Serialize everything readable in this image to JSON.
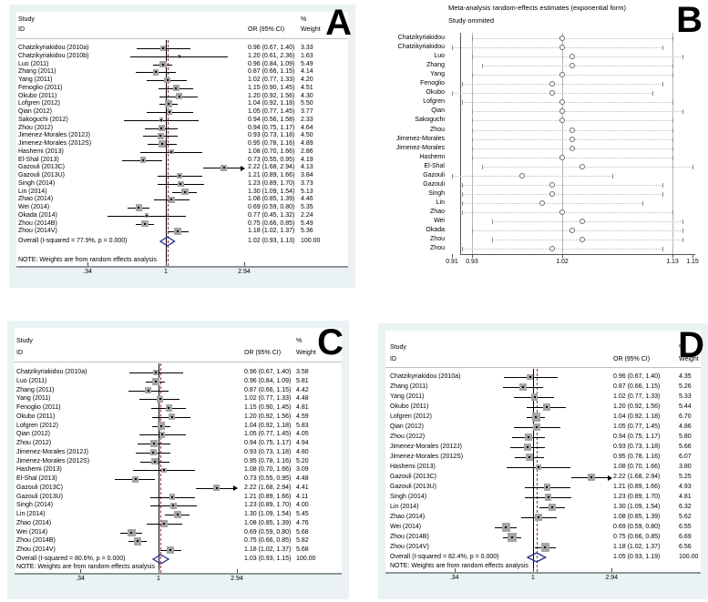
{
  "chart_data": [
    {
      "panel": "A",
      "type": "forest",
      "letter": "A",
      "header": {
        "study": "Study",
        "id": "ID",
        "or": "OR (95% CI)",
        "pct": "%",
        "weight": "Weight"
      },
      "note": "NOTE: Weights are from random effects analysis",
      "axis_ticks": [
        {
          "label": ".34",
          "v": 0.34
        },
        {
          "label": "1",
          "v": 1
        },
        {
          "label": "2.94",
          "v": 2.94
        }
      ],
      "xscale": "log",
      "studies": [
        {
          "label": "Chatzikyriakidou (2010a)",
          "or": 0.96,
          "lo": 0.67,
          "hi": 1.4,
          "or_text": "0.96 (0.67, 1.40)",
          "weight": "3.33"
        },
        {
          "label": "Chatzikyriakidou (2010b)",
          "or": 1.2,
          "lo": 0.61,
          "hi": 2.36,
          "or_text": "1.20 (0.61, 2.36)",
          "weight": "1.63"
        },
        {
          "label": "Luo (2011)",
          "or": 0.96,
          "lo": 0.84,
          "hi": 1.09,
          "or_text": "0.96 (0.84, 1.09)",
          "weight": "5.49"
        },
        {
          "label": "Zhang (2011)",
          "or": 0.87,
          "lo": 0.66,
          "hi": 1.15,
          "or_text": "0.87 (0.66, 1.15)",
          "weight": "4.14"
        },
        {
          "label": "Yang (2011)",
          "or": 1.02,
          "lo": 0.77,
          "hi": 1.33,
          "or_text": "1.02 (0.77, 1.33)",
          "weight": "4.20"
        },
        {
          "label": "Fenoglio (2011)",
          "or": 1.15,
          "lo": 0.9,
          "hi": 1.45,
          "or_text": "1.15 (0.90, 1.45)",
          "weight": "4.51"
        },
        {
          "label": "Okubo (2011)",
          "or": 1.2,
          "lo": 0.92,
          "hi": 1.56,
          "or_text": "1.20 (0.92, 1.56)",
          "weight": "4.30"
        },
        {
          "label": "Lofgren (2012)",
          "or": 1.04,
          "lo": 0.92,
          "hi": 1.18,
          "or_text": "1.04 (0.92, 1.18)",
          "weight": "5.50"
        },
        {
          "label": "Qian (2012)",
          "or": 1.05,
          "lo": 0.77,
          "hi": 1.45,
          "or_text": "1.05 (0.77, 1.45)",
          "weight": "3.77"
        },
        {
          "label": "Sakoguchi (2012)",
          "or": 0.94,
          "lo": 0.56,
          "hi": 1.58,
          "or_text": "0.94 (0.56, 1.58)",
          "weight": "2.33"
        },
        {
          "label": "Zhou (2012)",
          "or": 0.94,
          "lo": 0.75,
          "hi": 1.17,
          "or_text": "0.94 (0.75, 1.17)",
          "weight": "4.64"
        },
        {
          "label": "Jimenez-Morales (2012J)",
          "or": 0.93,
          "lo": 0.73,
          "hi": 1.18,
          "or_text": "0.93 (0.73, 1.18)",
          "weight": "4.50"
        },
        {
          "label": "Jimenez-Morales (2012S)",
          "or": 0.95,
          "lo": 0.78,
          "hi": 1.16,
          "or_text": "0.95 (0.78, 1.16)",
          "weight": "4.89"
        },
        {
          "label": "Hashemi (2013)",
          "or": 1.08,
          "lo": 0.7,
          "hi": 1.66,
          "or_text": "1.08 (0.70, 1.66)",
          "weight": "2.86"
        },
        {
          "label": "El-Shal (2013)",
          "or": 0.73,
          "lo": 0.55,
          "hi": 0.95,
          "or_text": "0.73 (0.55, 0.95)",
          "weight": "4.19"
        },
        {
          "label": "Gazouli (2013C)",
          "or": 2.22,
          "lo": 1.68,
          "hi": 2.94,
          "or_text": "2.22 (1.68, 2.94)",
          "weight": "4.13"
        },
        {
          "label": "Gazouli (2013U)",
          "or": 1.21,
          "lo": 0.89,
          "hi": 1.66,
          "or_text": "1.21 (0.89, 1.66)",
          "weight": "3.84"
        },
        {
          "label": "Singh (2014)",
          "or": 1.23,
          "lo": 0.89,
          "hi": 1.7,
          "or_text": "1.23 (0.89, 1.70)",
          "weight": "3.73"
        },
        {
          "label": "Lin (2014)",
          "or": 1.3,
          "lo": 1.09,
          "hi": 1.54,
          "or_text": "1.30 (1.09, 1.54)",
          "weight": "5.13"
        },
        {
          "label": "Zhao (2014)",
          "or": 1.08,
          "lo": 0.85,
          "hi": 1.39,
          "or_text": "1.08 (0.85, 1.39)",
          "weight": "4.46"
        },
        {
          "label": "Wei (2014)",
          "or": 0.69,
          "lo": 0.59,
          "hi": 0.8,
          "or_text": "0.69 (0.59, 0.80)",
          "weight": "5.35"
        },
        {
          "label": "Okada (2014)",
          "or": 0.77,
          "lo": 0.45,
          "hi": 1.32,
          "or_text": "0.77 (0.45, 1.32)",
          "weight": "2.24"
        },
        {
          "label": "Zhou (2014B)",
          "or": 0.75,
          "lo": 0.66,
          "hi": 0.85,
          "or_text": "0.75 (0.66, 0.85)",
          "weight": "5.49"
        },
        {
          "label": "Zhou (2014V)",
          "or": 1.18,
          "lo": 1.02,
          "hi": 1.37,
          "or_text": "1.18 (1.02, 1.37)",
          "weight": "5.36"
        }
      ],
      "overall": {
        "label": "Overall  (I-squared = 77.9%, p = 0.000)",
        "or": 1.02,
        "lo": 0.93,
        "hi": 1.13,
        "or_text": "1.02 (0.93, 1.13)",
        "weight": "100.00"
      }
    },
    {
      "panel": "B",
      "type": "sensitivity",
      "letter": "B",
      "title1": "Meta-analysis random-effects estimates (exponential form)",
      "title2": "Study ommited",
      "axis_ticks": [
        {
          "label": "0.91",
          "v": 0.91
        },
        {
          "label": "0.93",
          "v": 0.93
        },
        {
          "label": "1.02",
          "v": 1.02
        },
        {
          "label": "1.13",
          "v": 1.13
        },
        {
          "label": "1.15",
          "v": 1.15
        }
      ],
      "vlines": [
        0.93,
        1.02,
        1.13
      ],
      "studies": [
        {
          "label": "Chatzikyriakidou",
          "est": 1.02,
          "lo": 0.93,
          "hi": 1.13
        },
        {
          "label": "Chatzikyriakidou",
          "est": 1.02,
          "lo": 0.91,
          "hi": 1.12
        },
        {
          "label": "Luo",
          "est": 1.03,
          "lo": 0.93,
          "hi": 1.14
        },
        {
          "label": "Zhang",
          "est": 1.03,
          "lo": 0.94,
          "hi": 1.13
        },
        {
          "label": "Yang",
          "est": 1.02,
          "lo": 0.93,
          "hi": 1.13
        },
        {
          "label": "Fenoglio",
          "est": 1.01,
          "lo": 0.92,
          "hi": 1.12
        },
        {
          "label": "Okubo",
          "est": 1.01,
          "lo": 0.91,
          "hi": 1.11
        },
        {
          "label": "Lofgren",
          "est": 1.02,
          "lo": 0.92,
          "hi": 1.13
        },
        {
          "label": "Qian",
          "est": 1.02,
          "lo": 0.93,
          "hi": 1.14
        },
        {
          "label": "Sakoguchi",
          "est": 1.02,
          "lo": 0.93,
          "hi": 1.13
        },
        {
          "label": "Zhou",
          "est": 1.03,
          "lo": 0.93,
          "hi": 1.13
        },
        {
          "label": "Jimenez-Morales",
          "est": 1.03,
          "lo": 0.93,
          "hi": 1.13
        },
        {
          "label": "Jimenez-Morales",
          "est": 1.03,
          "lo": 0.93,
          "hi": 1.13
        },
        {
          "label": "Hashemi",
          "est": 1.02,
          "lo": 0.93,
          "hi": 1.13
        },
        {
          "label": "El-Shal",
          "est": 1.04,
          "lo": 0.94,
          "hi": 1.15
        },
        {
          "label": "Gazouli",
          "est": 0.98,
          "lo": 0.91,
          "hi": 1.07
        },
        {
          "label": "Gazouli",
          "est": 1.01,
          "lo": 0.92,
          "hi": 1.12
        },
        {
          "label": "Singh",
          "est": 1.01,
          "lo": 0.92,
          "hi": 1.12
        },
        {
          "label": "Lin",
          "est": 1.0,
          "lo": 0.92,
          "hi": 1.1
        },
        {
          "label": "Zhao",
          "est": 1.02,
          "lo": 0.92,
          "hi": 1.13
        },
        {
          "label": "Wei",
          "est": 1.04,
          "lo": 0.95,
          "hi": 1.14
        },
        {
          "label": "Okada",
          "est": 1.03,
          "lo": 0.93,
          "hi": 1.14
        },
        {
          "label": "Zhou",
          "est": 1.04,
          "lo": 0.95,
          "hi": 1.14
        },
        {
          "label": "Zhou",
          "est": 1.01,
          "lo": 0.92,
          "hi": 1.12
        }
      ]
    },
    {
      "panel": "C",
      "type": "forest",
      "letter": "C",
      "header": {
        "study": "Study",
        "id": "ID",
        "or": "OR (95% CI)",
        "pct": "%",
        "weight": "Weight"
      },
      "note": "NOTE: Weights are from random effects analysis",
      "axis_ticks": [
        {
          "label": ".34",
          "v": 0.34
        },
        {
          "label": "1",
          "v": 1
        },
        {
          "label": "2.94",
          "v": 2.94
        }
      ],
      "xscale": "log",
      "studies": [
        {
          "label": "Chatzikyriakidou (2010a)",
          "or": 0.96,
          "lo": 0.67,
          "hi": 1.4,
          "or_text": "0.96 (0.67, 1.40)",
          "weight": "3.58"
        },
        {
          "label": "Luo (2011)",
          "or": 0.96,
          "lo": 0.84,
          "hi": 1.09,
          "or_text": "0.96 (0.84, 1.09)",
          "weight": "5.81"
        },
        {
          "label": "Zhang (2011)",
          "or": 0.87,
          "lo": 0.66,
          "hi": 1.15,
          "or_text": "0.87 (0.66, 1.15)",
          "weight": "4.42"
        },
        {
          "label": "Yang (2011)",
          "or": 1.02,
          "lo": 0.77,
          "hi": 1.33,
          "or_text": "1.02 (0.77, 1.33)",
          "weight": "4.48"
        },
        {
          "label": "Fenoglio (2011)",
          "or": 1.15,
          "lo": 0.9,
          "hi": 1.45,
          "or_text": "1.15 (0.90, 1.45)",
          "weight": "4.81"
        },
        {
          "label": "Okubo (2011)",
          "or": 1.2,
          "lo": 0.92,
          "hi": 1.56,
          "or_text": "1.20 (0.92, 1.56)",
          "weight": "4.59"
        },
        {
          "label": "Lofgren (2012)",
          "or": 1.04,
          "lo": 0.92,
          "hi": 1.18,
          "or_text": "1.04 (0.92, 1.18)",
          "weight": "5.83"
        },
        {
          "label": "Qian (2012)",
          "or": 1.05,
          "lo": 0.77,
          "hi": 1.45,
          "or_text": "1.05 (0.77, 1.45)",
          "weight": "4.05"
        },
        {
          "label": "Zhou (2012)",
          "or": 0.94,
          "lo": 0.75,
          "hi": 1.17,
          "or_text": "0.94 (0.75, 1.17)",
          "weight": "4.94"
        },
        {
          "label": "Jimenez-Morales (2012J)",
          "or": 0.93,
          "lo": 0.73,
          "hi": 1.18,
          "or_text": "0.93 (0.73, 1.18)",
          "weight": "4.80"
        },
        {
          "label": "Jimenez-Morales (2012S)",
          "or": 0.95,
          "lo": 0.78,
          "hi": 1.16,
          "or_text": "0.95 (0.78, 1.16)",
          "weight": "5.20"
        },
        {
          "label": "Hashemi (2013)",
          "or": 1.08,
          "lo": 0.7,
          "hi": 1.66,
          "or_text": "1.08 (0.70, 1.66)",
          "weight": "3.09"
        },
        {
          "label": "El-Shal (2013)",
          "or": 0.73,
          "lo": 0.55,
          "hi": 0.95,
          "or_text": "0.73 (0.55, 0.95)",
          "weight": "4.48"
        },
        {
          "label": "Gazouli (2013C)",
          "or": 2.22,
          "lo": 1.68,
          "hi": 2.94,
          "or_text": "2.22 (1.68, 2.94)",
          "weight": "4.41"
        },
        {
          "label": "Gazouli (2013U)",
          "or": 1.21,
          "lo": 0.89,
          "hi": 1.66,
          "or_text": "1.21 (0.89, 1.66)",
          "weight": "4.11"
        },
        {
          "label": "Singh (2014)",
          "or": 1.23,
          "lo": 0.89,
          "hi": 1.7,
          "or_text": "1.23 (0.89, 1.70)",
          "weight": "4.00"
        },
        {
          "label": "Lin (2014)",
          "or": 1.3,
          "lo": 1.09,
          "hi": 1.54,
          "or_text": "1.30 (1.09, 1.54)",
          "weight": "5.45"
        },
        {
          "label": "Zhao (2014)",
          "or": 1.08,
          "lo": 0.85,
          "hi": 1.39,
          "or_text": "1.08 (0.85, 1.39)",
          "weight": "4.76"
        },
        {
          "label": "Wei (2014)",
          "or": 0.69,
          "lo": 0.59,
          "hi": 0.8,
          "or_text": "0.69 (0.59, 0.80)",
          "weight": "5.68"
        },
        {
          "label": "Zhou (2014B)",
          "or": 0.75,
          "lo": 0.66,
          "hi": 0.85,
          "or_text": "0.75 (0.66, 0.85)",
          "weight": "5.82"
        },
        {
          "label": "Zhou (2014V)",
          "or": 1.18,
          "lo": 1.02,
          "hi": 1.37,
          "or_text": "1.18 (1.02, 1.37)",
          "weight": "5.68"
        }
      ],
      "overall": {
        "label": "Overall  (I-squared = 80.6%, p = 0.000)",
        "or": 1.03,
        "lo": 0.93,
        "hi": 1.15,
        "or_text": "1.03 (0.93, 1.15)",
        "weight": "100.00"
      }
    },
    {
      "panel": "D",
      "type": "forest",
      "letter": "D",
      "header": {
        "study": "Study",
        "id": "ID",
        "or": "OR (95% CI)",
        "pct": "%",
        "weight": "Weight"
      },
      "note": "NOTE: Weights are from random effects analysis",
      "axis_ticks": [
        {
          "label": ".34",
          "v": 0.34
        },
        {
          "label": "1",
          "v": 1
        },
        {
          "label": "2.94",
          "v": 2.94
        }
      ],
      "xscale": "log",
      "studies": [
        {
          "label": "Chatzikyriakidou (2010a)",
          "or": 0.96,
          "lo": 0.67,
          "hi": 1.4,
          "or_text": "0.96 (0.67, 1.40)",
          "weight": "4.35"
        },
        {
          "label": "Zhang (2011)",
          "or": 0.87,
          "lo": 0.66,
          "hi": 1.15,
          "or_text": "0.87 (0.66, 1.15)",
          "weight": "5.26"
        },
        {
          "label": "Yang (2011)",
          "or": 1.02,
          "lo": 0.77,
          "hi": 1.33,
          "or_text": "1.02 (0.77, 1.33)",
          "weight": "5.33"
        },
        {
          "label": "Okubo (2011)",
          "or": 1.2,
          "lo": 0.92,
          "hi": 1.56,
          "or_text": "1.20 (0.92, 1.56)",
          "weight": "5.44"
        },
        {
          "label": "Lofgren (2012)",
          "or": 1.04,
          "lo": 0.92,
          "hi": 1.18,
          "or_text": "1.04 (0.92, 1.18)",
          "weight": "6.70"
        },
        {
          "label": "Qian (2012)",
          "or": 1.05,
          "lo": 0.77,
          "hi": 1.45,
          "or_text": "1.05 (0.77, 1.45)",
          "weight": "4.86"
        },
        {
          "label": "Zhou (2012)",
          "or": 0.94,
          "lo": 0.75,
          "hi": 1.17,
          "or_text": "0.94 (0.75, 1.17)",
          "weight": "5.80"
        },
        {
          "label": "Jimenez-Morales (2012J)",
          "or": 0.93,
          "lo": 0.73,
          "hi": 1.18,
          "or_text": "0.93 (0.73, 1.18)",
          "weight": "5.66"
        },
        {
          "label": "Jimenez-Morales (2012S)",
          "or": 0.95,
          "lo": 0.78,
          "hi": 1.16,
          "or_text": "0.95 (0.78, 1.16)",
          "weight": "6.07"
        },
        {
          "label": "Hashemi (2013)",
          "or": 1.08,
          "lo": 0.7,
          "hi": 1.66,
          "or_text": "1.08 (0.70, 1.66)",
          "weight": "3.80"
        },
        {
          "label": "Gazouli (2013C)",
          "or": 2.22,
          "lo": 1.68,
          "hi": 2.94,
          "or_text": "2.22 (1.68, 2.94)",
          "weight": "5.25"
        },
        {
          "label": "Gazouli (2013U)",
          "or": 1.21,
          "lo": 0.89,
          "hi": 1.66,
          "or_text": "1.21 (0.89, 1.66)",
          "weight": "4.93"
        },
        {
          "label": "Singh (2014)",
          "or": 1.23,
          "lo": 0.89,
          "hi": 1.7,
          "or_text": "1.23 (0.89, 1.70)",
          "weight": "4.81"
        },
        {
          "label": "Lin (2014)",
          "or": 1.3,
          "lo": 1.09,
          "hi": 1.54,
          "or_text": "1.30 (1.09, 1.54)",
          "weight": "6.32"
        },
        {
          "label": "Zhao (2014)",
          "or": 1.08,
          "lo": 0.85,
          "hi": 1.39,
          "or_text": "1.08 (0.85, 1.39)",
          "weight": "5.62"
        },
        {
          "label": "Wei (2014)",
          "or": 0.69,
          "lo": 0.59,
          "hi": 0.8,
          "or_text": "0.69 (0.59, 0.80)",
          "weight": "6.55"
        },
        {
          "label": "Zhou (2014B)",
          "or": 0.75,
          "lo": 0.66,
          "hi": 0.85,
          "or_text": "0.75 (0.66, 0.85)",
          "weight": "6.69"
        },
        {
          "label": "Zhou (2014V)",
          "or": 1.18,
          "lo": 1.02,
          "hi": 1.37,
          "or_text": "1.18 (1.02, 1.37)",
          "weight": "6.56"
        }
      ],
      "overall": {
        "label": "Overall  (I-squared = 82.4%, p = 0.000)",
        "or": 1.05,
        "lo": 0.93,
        "hi": 1.19,
        "or_text": "1.05 (0.93, 1.19)",
        "weight": "100.00"
      }
    }
  ],
  "colors": {
    "panel_background": "#eaf2f3",
    "diamond": "#262c8f",
    "overall_dashed_line": "#90353b",
    "weight_box": "#a5a5a5"
  }
}
